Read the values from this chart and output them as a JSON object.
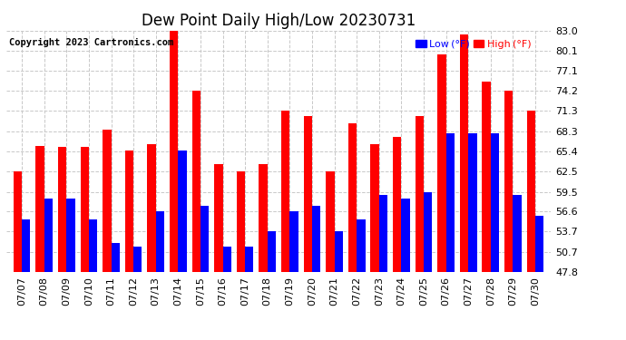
{
  "title": "Dew Point Daily High/Low 20230731",
  "copyright": "Copyright 2023 Cartronics.com",
  "ylim": [
    47.8,
    83.0
  ],
  "yticks": [
    47.8,
    50.7,
    53.7,
    56.6,
    59.5,
    62.5,
    65.4,
    68.3,
    71.3,
    74.2,
    77.1,
    80.1,
    83.0
  ],
  "dates": [
    "07/07",
    "07/08",
    "07/09",
    "07/10",
    "07/11",
    "07/12",
    "07/13",
    "07/14",
    "07/15",
    "07/16",
    "07/17",
    "07/18",
    "07/19",
    "07/20",
    "07/21",
    "07/22",
    "07/23",
    "07/24",
    "07/25",
    "07/26",
    "07/27",
    "07/28",
    "07/29",
    "07/30"
  ],
  "high": [
    62.5,
    66.2,
    66.0,
    66.0,
    68.5,
    65.5,
    66.5,
    83.0,
    74.2,
    63.5,
    62.5,
    63.5,
    71.3,
    70.5,
    62.5,
    69.5,
    66.5,
    67.5,
    70.5,
    79.5,
    82.5,
    75.5,
    74.2,
    71.3
  ],
  "low": [
    55.5,
    58.5,
    58.5,
    55.5,
    52.0,
    51.5,
    56.6,
    65.5,
    57.5,
    51.5,
    51.5,
    53.7,
    56.6,
    57.5,
    53.7,
    55.5,
    59.0,
    58.5,
    59.5,
    68.0,
    68.0,
    68.0,
    59.0,
    56.0
  ],
  "high_color": "#ff0000",
  "low_color": "#0000ff",
  "bg_color": "#ffffff",
  "grid_color": "#c8c8c8",
  "title_fontsize": 12,
  "tick_fontsize": 8,
  "copyright_fontsize": 7.5,
  "bar_width": 0.38,
  "figwidth": 6.9,
  "figheight": 3.75,
  "dpi": 100
}
